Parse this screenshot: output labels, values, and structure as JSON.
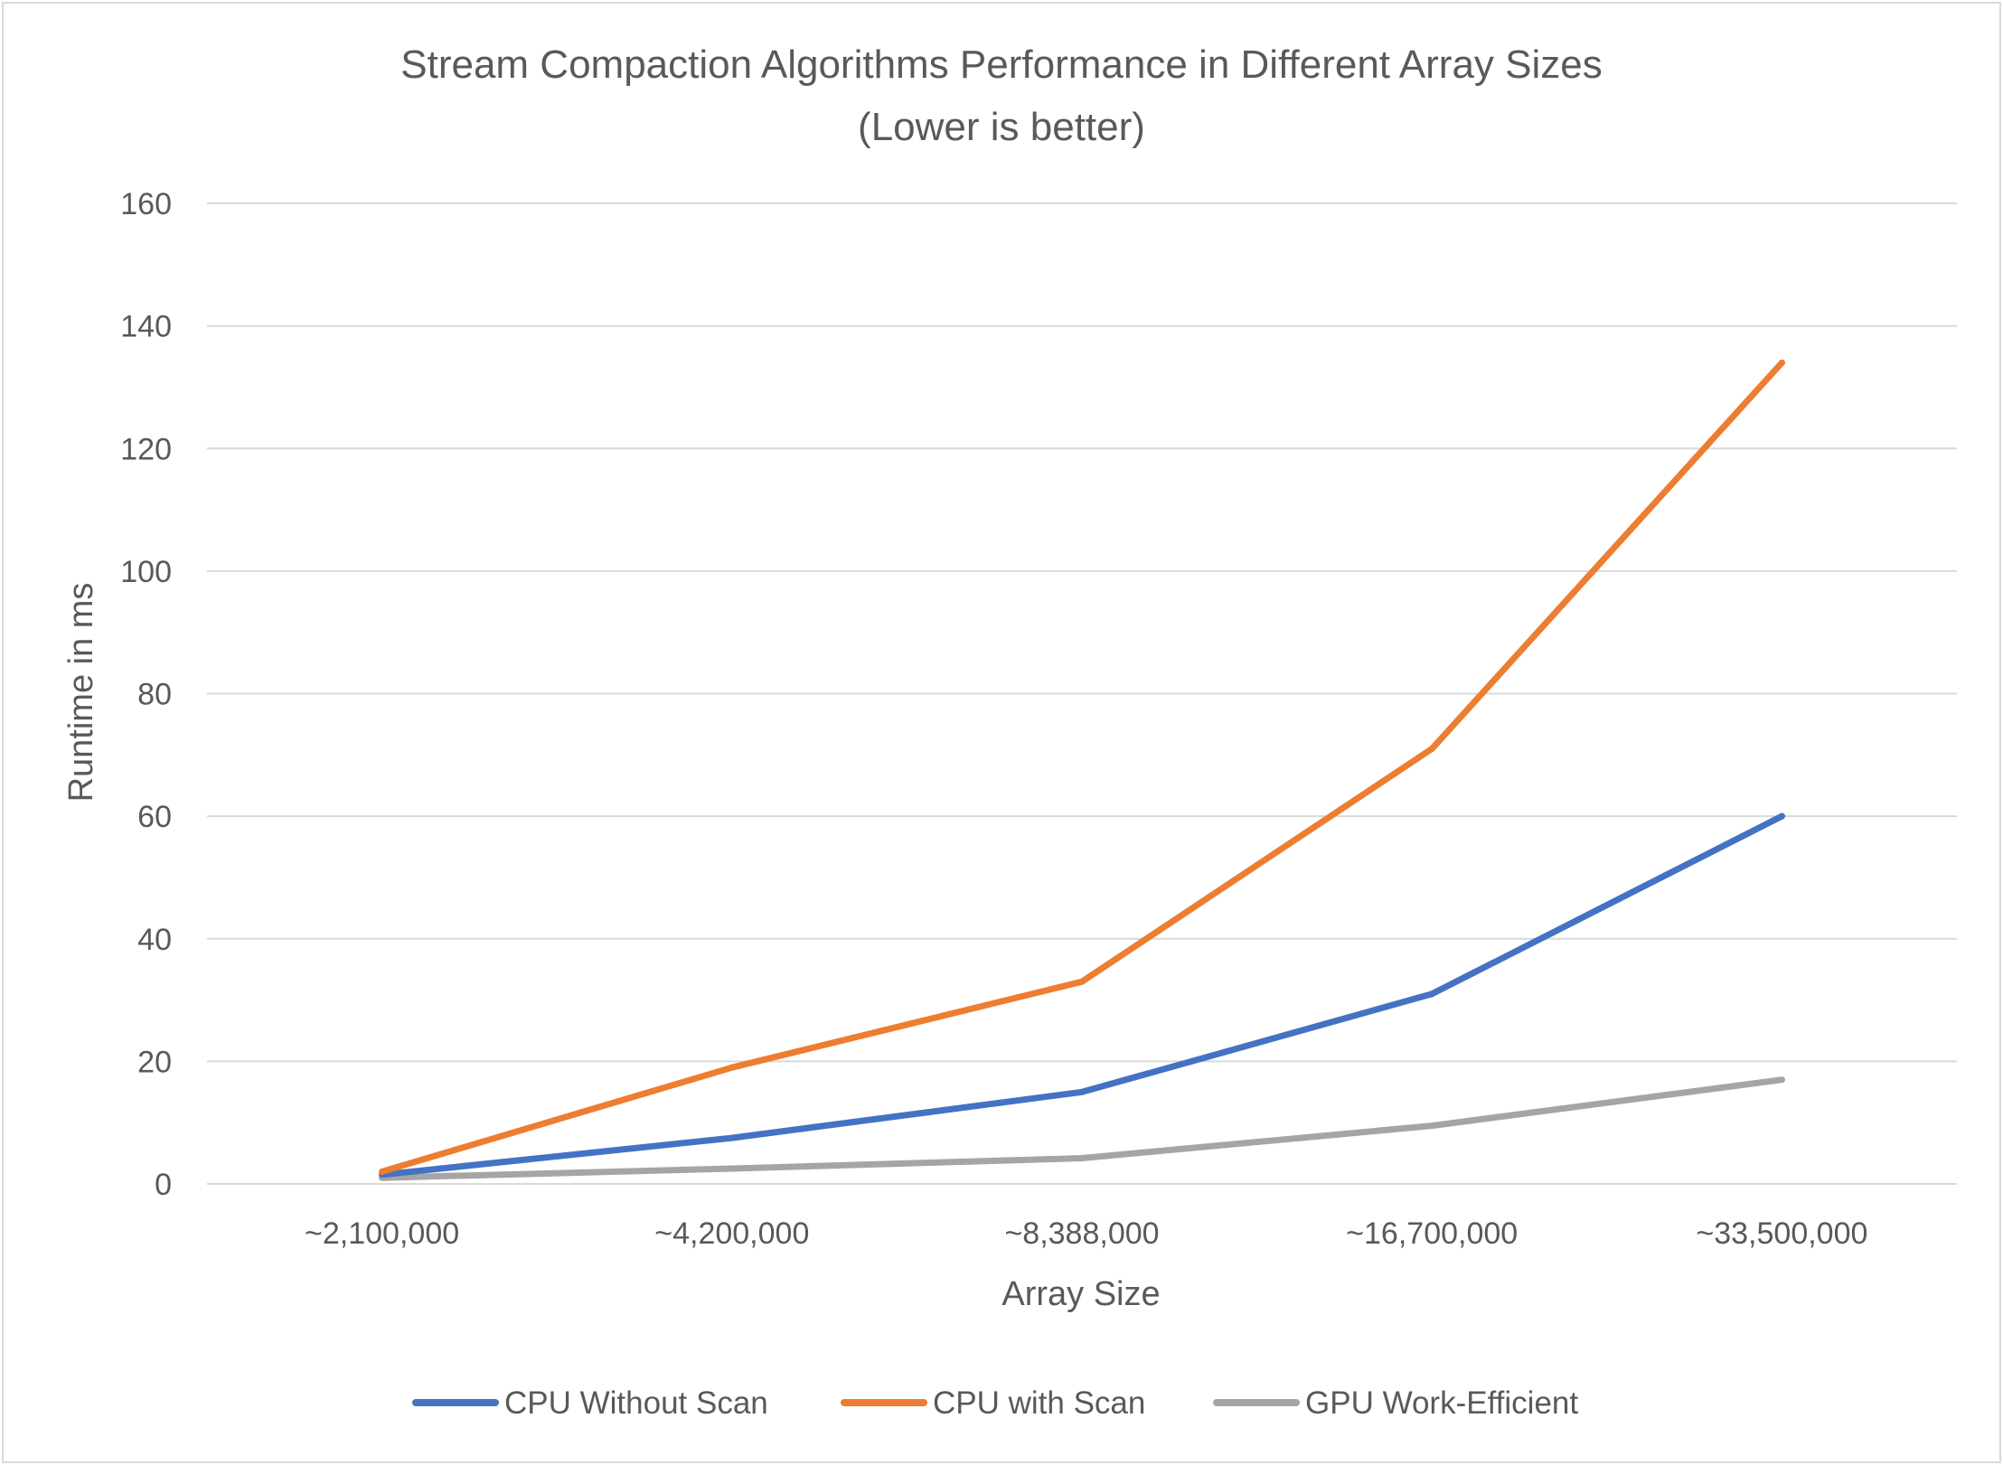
{
  "chart_data": {
    "type": "line",
    "title": "Stream Compaction Algorithms Performance in Different Array Sizes",
    "subtitle": "(Lower is better)",
    "xlabel": "Array Size",
    "ylabel": "Runtime in ms",
    "categories": [
      "~2,100,000",
      "~4,200,000",
      "~8,388,000",
      "~16,700,000",
      "~33,500,000"
    ],
    "ylim": [
      0,
      160
    ],
    "yticks": [
      0,
      20,
      40,
      60,
      80,
      100,
      120,
      140,
      160
    ],
    "grid": true,
    "legend_position": "bottom",
    "series": [
      {
        "name": "CPU Without Scan",
        "color": "#4472c4",
        "values": [
          1.5,
          7.5,
          15,
          31,
          60
        ]
      },
      {
        "name": "CPU with Scan",
        "color": "#ed7d31",
        "values": [
          2,
          19,
          33,
          71,
          134
        ]
      },
      {
        "name": "GPU Work-Efficient",
        "color": "#a5a5a5",
        "values": [
          1,
          2.5,
          4.2,
          9.5,
          17
        ]
      }
    ]
  }
}
